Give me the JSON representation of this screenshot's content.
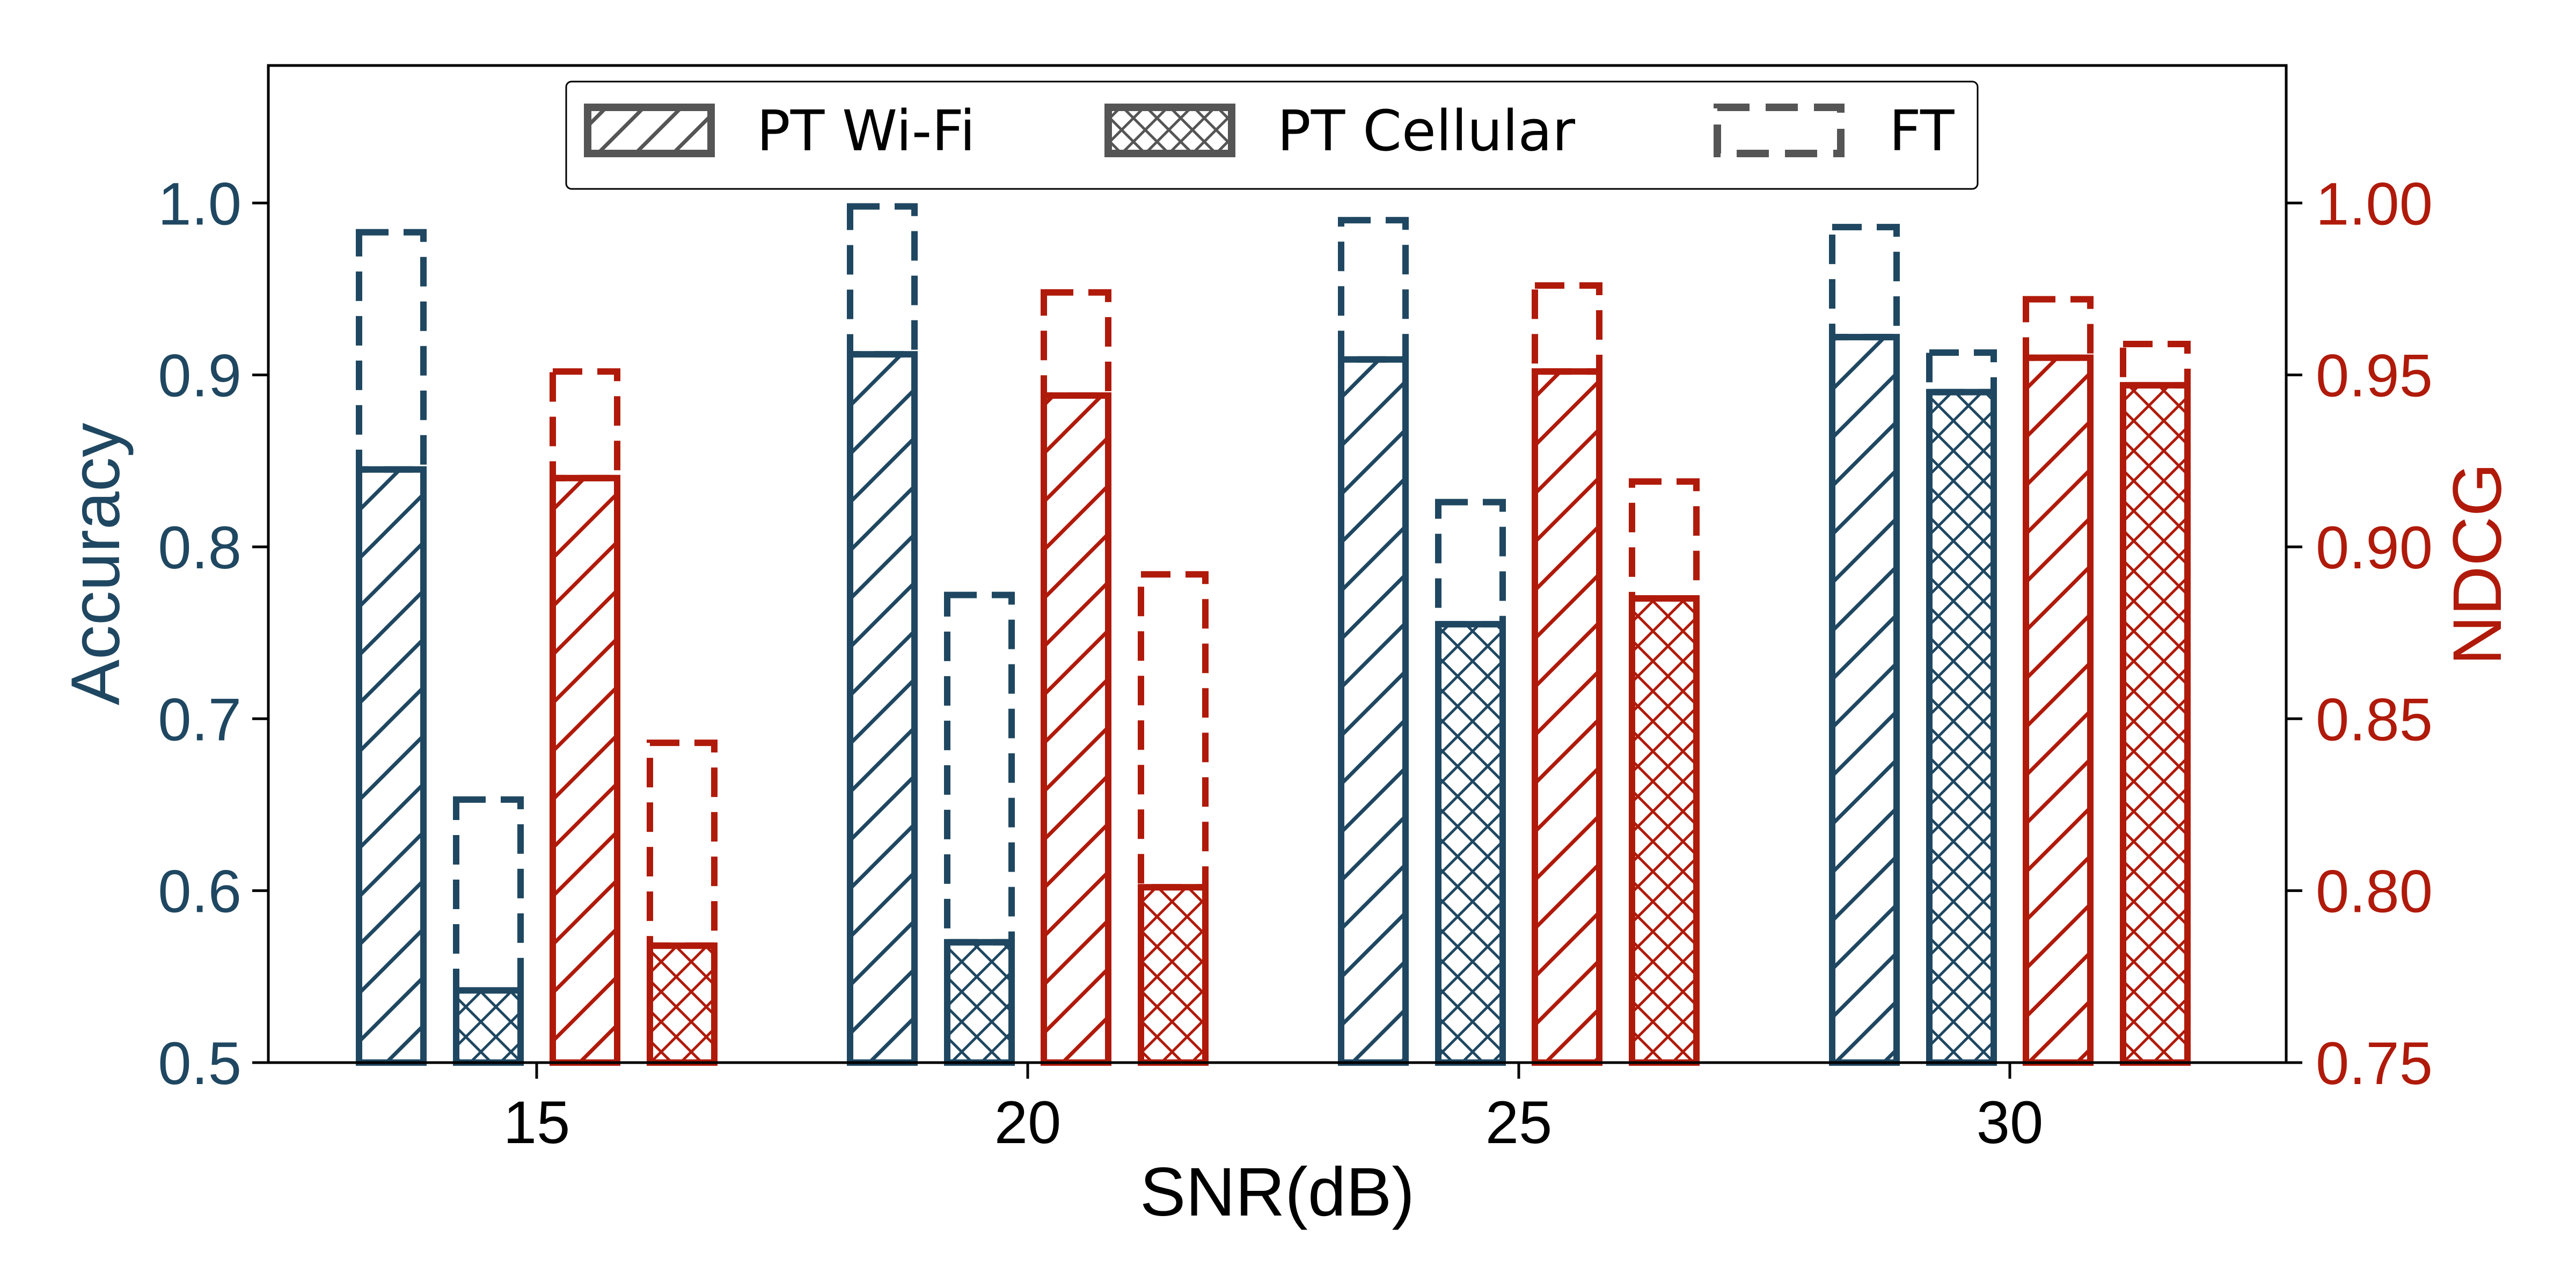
{
  "chart_data": {
    "type": "bar",
    "categories": [
      "15",
      "20",
      "25",
      "30"
    ],
    "xlabel": "SNR(dB)",
    "y_left": {
      "label": "Accuracy",
      "lim": [
        0.5,
        1.08
      ],
      "ticks": [
        "0.5",
        "0.6",
        "0.7",
        "0.8",
        "0.9",
        "1.0"
      ],
      "color": "#1f4761"
    },
    "y_right": {
      "label": "NDCG",
      "lim": [
        0.75,
        1.04
      ],
      "ticks": [
        "0.75",
        "0.80",
        "0.85",
        "0.90",
        "0.95",
        "1.00"
      ],
      "color": "#b01a0a"
    },
    "legend": {
      "location": "top-center",
      "entries": [
        "PT Wi-Fi",
        "PT Cellular",
        "FT"
      ]
    },
    "series": [
      {
        "metric": "Accuracy",
        "pretrain": "Wi-Fi",
        "axis": "left",
        "pt": [
          0.845,
          0.912,
          0.909,
          0.922
        ],
        "ft": [
          0.983,
          0.998,
          0.99,
          0.986
        ]
      },
      {
        "metric": "Accuracy",
        "pretrain": "Cellular",
        "axis": "left",
        "pt": [
          0.542,
          0.57,
          0.755,
          0.89
        ],
        "ft": [
          0.653,
          0.772,
          0.826,
          0.913
        ]
      },
      {
        "metric": "NDCG",
        "pretrain": "Wi-Fi",
        "axis": "right",
        "pt": [
          0.92,
          0.944,
          0.951,
          0.955
        ],
        "ft": [
          0.951,
          0.974,
          0.976,
          0.972
        ]
      },
      {
        "metric": "NDCG",
        "pretrain": "Cellular",
        "axis": "right",
        "pt": [
          0.784,
          0.801,
          0.885,
          0.947
        ],
        "ft": [
          0.843,
          0.892,
          0.919,
          0.959
        ]
      }
    ]
  }
}
